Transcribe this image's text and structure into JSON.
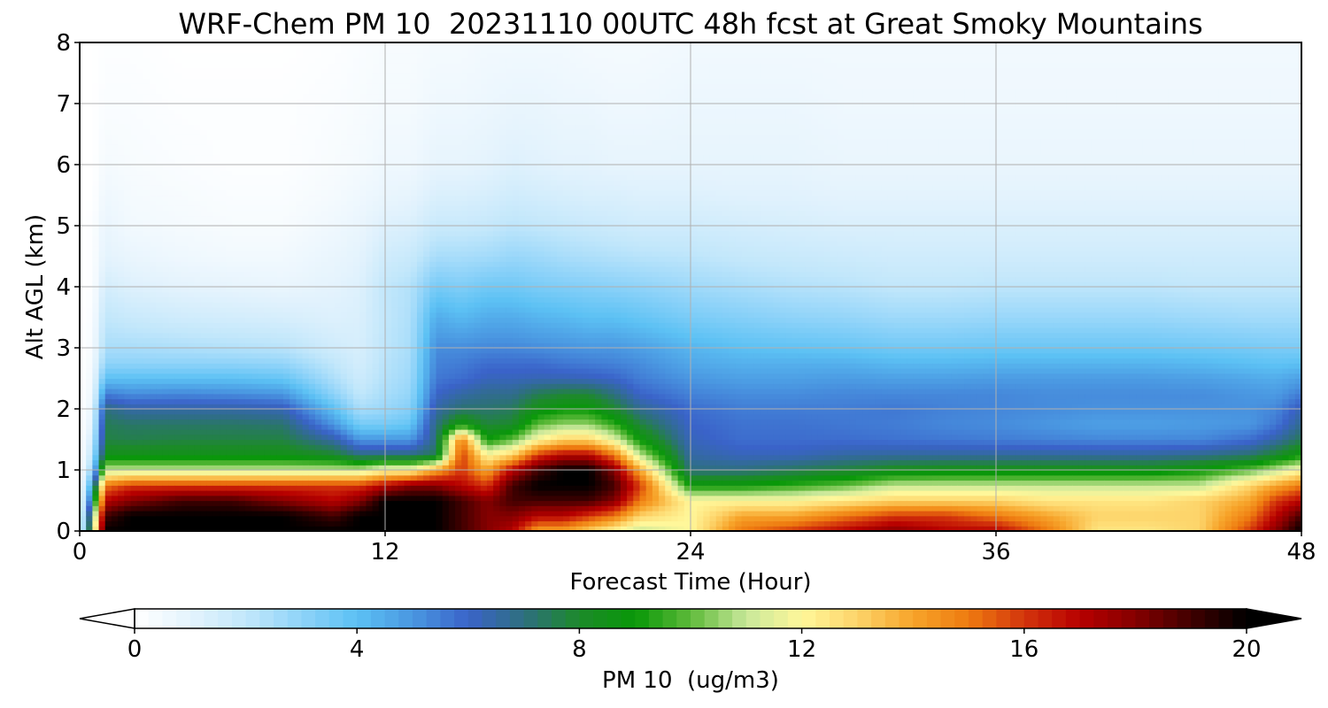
{
  "chart_data": {
    "type": "heatmap",
    "title": "WRF-Chem PM 10  20231110 00UTC 48h fcst at Great Smoky Mountains",
    "xlabel": "Forecast Time (Hour)",
    "ylabel": "Alt AGL (km)",
    "xlim": [
      0,
      48
    ],
    "ylim": [
      0,
      8
    ],
    "xticks": [
      "0",
      "12",
      "24",
      "36",
      "48"
    ],
    "yticks": [
      "0",
      "1",
      "2",
      "3",
      "4",
      "5",
      "6",
      "7",
      "8"
    ],
    "grid": true,
    "colorbar": {
      "label": "PM 10  (ug/m3)",
      "range": [
        0,
        20
      ],
      "ticks": [
        "0",
        "4",
        "8",
        "12",
        "16",
        "20"
      ],
      "extend": "both",
      "orientation": "horizontal",
      "colors": [
        "#ffffff",
        "#e4f3fd",
        "#c2e7fb",
        "#8fd3f9",
        "#5cc1f4",
        "#4a97e1",
        "#3a63c9",
        "#2e6f7f",
        "#1d8a2a",
        "#089808",
        "#5fba3a",
        "#c8e89a",
        "#fff79a",
        "#fdd46a",
        "#f7a42a",
        "#ee7b10",
        "#d3350c",
        "#b70000",
        "#850000",
        "#400000",
        "#000000"
      ]
    },
    "x_hours": [
      0,
      0.5,
      1,
      2,
      4,
      6,
      8,
      10,
      11,
      12,
      13,
      14,
      15,
      16,
      17,
      18,
      19,
      20,
      21,
      22,
      24,
      26,
      28,
      30,
      32,
      34,
      36,
      38,
      40,
      42,
      44,
      46,
      47,
      48
    ],
    "altitudes_km": [
      0,
      0.25,
      0.5,
      0.75,
      1.0,
      1.25,
      1.5,
      1.75,
      2.0,
      2.25,
      2.5,
      2.75,
      3.0,
      3.5,
      4.0,
      4.5,
      5.0,
      5.5,
      6.0,
      7.0,
      8.0
    ],
    "pm10_profiles": [
      [
        0,
        0,
        0,
        0,
        0,
        0,
        0,
        0,
        0,
        0,
        0,
        0,
        0,
        0,
        0,
        0,
        0,
        0,
        0,
        0,
        0
      ],
      [
        10,
        9,
        7,
        5,
        3,
        2,
        1.5,
        1,
        0.8,
        0.6,
        0.5,
        0.4,
        0.3,
        0.2,
        0.1,
        0.1,
        0.1,
        0,
        0,
        0,
        0
      ],
      [
        20,
        19,
        17,
        15,
        11,
        8.5,
        7.7,
        7.5,
        7,
        5.5,
        4,
        3,
        2.5,
        2,
        1.5,
        1,
        0.8,
        0.6,
        0.4,
        0.2,
        0.1
      ],
      [
        20,
        20,
        18,
        16,
        11,
        8.5,
        7.6,
        7.3,
        6.5,
        5.2,
        4,
        3,
        2.5,
        1.8,
        1.2,
        0.8,
        0.5,
        0.4,
        0.3,
        0.2,
        0.1
      ],
      [
        20,
        20,
        19,
        16,
        11,
        8.5,
        7.7,
        7.3,
        6.5,
        5.3,
        4,
        3,
        2.4,
        1.6,
        1.0,
        0.6,
        0.4,
        0.3,
        0.2,
        0.1,
        0
      ],
      [
        20,
        20,
        19,
        16,
        11,
        8.5,
        7.7,
        7.3,
        6.5,
        5.2,
        4,
        3,
        2.3,
        1.5,
        0.9,
        0.5,
        0.3,
        0.2,
        0.1,
        0.1,
        0
      ],
      [
        20,
        20,
        18,
        16,
        11,
        8.5,
        7.7,
        7.2,
        6.3,
        5,
        3.8,
        2.9,
        2.2,
        1.4,
        0.8,
        0.5,
        0.3,
        0.2,
        0.1,
        0.1,
        0
      ],
      [
        20,
        19,
        17,
        16,
        11,
        8,
        6.5,
        5,
        4,
        3,
        2.4,
        2,
        1.6,
        1.2,
        1.0,
        0.8,
        0.6,
        0.4,
        0.3,
        0.2,
        0.1
      ],
      [
        20,
        20,
        18,
        16,
        11,
        7,
        5,
        3.5,
        2.5,
        2,
        1.7,
        1.5,
        1.4,
        1.3,
        1.2,
        1.0,
        0.8,
        0.6,
        0.4,
        0.3,
        0.2
      ],
      [
        20,
        20,
        20,
        17,
        12,
        7,
        5,
        3.5,
        2.8,
        2.5,
        2.3,
        2.2,
        2.1,
        2.0,
        2.0,
        1.6,
        1.2,
        0.8,
        0.6,
        0.4,
        0.3
      ],
      [
        20,
        20,
        20,
        18,
        12,
        7,
        5,
        3.8,
        3.2,
        2.9,
        2.7,
        2.6,
        2.5,
        2.4,
        2.3,
        1.8,
        1.3,
        0.9,
        0.6,
        0.4,
        0.3
      ],
      [
        20,
        20,
        20,
        18,
        14,
        7.5,
        7,
        7,
        6.5,
        6,
        5.6,
        5.4,
        5.2,
        4.5,
        3.5,
        2.5,
        1.8,
        1.3,
        0.9,
        0.6,
        0.4
      ],
      [
        19,
        19,
        19,
        17,
        16,
        16,
        15,
        9,
        7.2,
        6.5,
        5.8,
        5.5,
        5.2,
        4.2,
        3.3,
        2.5,
        1.8,
        1.3,
        0.9,
        0.6,
        0.4
      ],
      [
        18,
        18,
        18,
        16,
        14,
        12,
        9,
        7.8,
        7.2,
        6.8,
        6.2,
        5.8,
        5.3,
        4.5,
        3.6,
        2.6,
        1.9,
        1.4,
        1.0,
        0.7,
        0.5
      ],
      [
        17,
        18,
        19,
        19,
        17,
        13,
        10,
        8,
        7.4,
        6.8,
        6.2,
        5.8,
        5.3,
        4.5,
        3.6,
        2.8,
        2.1,
        1.6,
        1.2,
        0.8,
        0.5
      ],
      [
        14,
        17,
        19,
        20,
        19,
        16,
        12,
        10,
        8.5,
        7.5,
        6.3,
        5.8,
        5.2,
        4.3,
        3.4,
        2.7,
        2.0,
        1.5,
        1.1,
        0.8,
        0.5
      ],
      [
        14,
        17,
        19,
        20,
        20,
        17,
        13,
        10.5,
        9,
        7.8,
        6.3,
        5.6,
        5.1,
        4.2,
        3.3,
        2.5,
        1.9,
        1.4,
        1.0,
        0.7,
        0.5
      ],
      [
        13,
        16,
        19,
        20,
        20,
        17,
        13,
        10.5,
        9,
        7.8,
        6.2,
        5.5,
        5.0,
        4.0,
        3.2,
        2.4,
        1.8,
        1.3,
        1.0,
        0.7,
        0.4
      ],
      [
        12,
        15,
        18,
        19,
        18,
        15,
        11.5,
        9.5,
        8,
        7,
        6,
        5.4,
        5.0,
        4.0,
        3.1,
        2.3,
        1.7,
        1.3,
        0.9,
        0.6,
        0.4
      ],
      [
        11,
        13,
        15,
        16,
        14,
        11,
        9,
        7.8,
        6.8,
        6,
        5.5,
        5.2,
        4.8,
        3.8,
        3.0,
        2.2,
        1.6,
        1.2,
        0.9,
        0.6,
        0.4
      ],
      [
        12,
        12,
        12,
        9,
        7,
        6.5,
        6.2,
        6,
        5.8,
        5.4,
        5,
        4.6,
        4.3,
        3.4,
        2.7,
        2.1,
        1.6,
        1.2,
        0.9,
        0.7,
        0.5
      ],
      [
        15,
        14,
        12,
        9,
        7,
        6.2,
        5.8,
        5.7,
        5.5,
        5.2,
        4.8,
        4.4,
        4.0,
        3.2,
        2.5,
        1.9,
        1.5,
        1.1,
        0.9,
        0.7,
        0.5
      ],
      [
        16,
        14,
        12,
        9.5,
        7.4,
        6.2,
        5.8,
        5.7,
        5.5,
        5.2,
        4.8,
        4.4,
        3.9,
        3.0,
        2.3,
        1.8,
        1.4,
        1.1,
        0.9,
        0.7,
        0.5
      ],
      [
        17,
        15,
        12.5,
        10,
        7.8,
        6.5,
        5.8,
        5.6,
        5.5,
        5.3,
        4.9,
        4.4,
        3.8,
        2.9,
        2.2,
        1.7,
        1.3,
        1.0,
        0.8,
        0.6,
        0.5
      ],
      [
        18,
        16,
        13,
        11,
        8.3,
        6.6,
        5.7,
        5.5,
        5.6,
        5.3,
        4.8,
        4.2,
        3.6,
        2.7,
        2.0,
        1.6,
        1.3,
        1.0,
        0.8,
        0.6,
        0.5
      ],
      [
        17,
        16,
        13,
        11,
        8.5,
        6.6,
        5.6,
        5.3,
        5.4,
        5.3,
        4.8,
        4.2,
        3.6,
        2.7,
        2.0,
        1.6,
        1.3,
        1.0,
        0.8,
        0.6,
        0.5
      ],
      [
        17,
        15,
        13,
        11,
        8.5,
        6.6,
        5.5,
        5.2,
        5.3,
        5.3,
        4.9,
        4.3,
        3.7,
        2.8,
        2.1,
        1.6,
        1.3,
        1.0,
        0.8,
        0.6,
        0.5
      ],
      [
        15,
        14,
        12.5,
        11,
        8.5,
        6.6,
        5.4,
        5.0,
        5.2,
        5.2,
        4.9,
        4.3,
        3.7,
        2.8,
        2.1,
        1.6,
        1.3,
        1.0,
        0.8,
        0.6,
        0.5
      ],
      [
        12.5,
        13,
        12.5,
        11,
        8.5,
        6.6,
        5.3,
        4.8,
        5.1,
        5.2,
        4.9,
        4.3,
        3.7,
        2.8,
        2.1,
        1.6,
        1.3,
        1.0,
        0.8,
        0.6,
        0.5
      ],
      [
        12.5,
        13,
        12.5,
        11,
        8.5,
        6.6,
        5.3,
        4.8,
        5.1,
        5.2,
        4.9,
        4.3,
        3.7,
        2.8,
        2.1,
        1.6,
        1.3,
        1.0,
        0.8,
        0.6,
        0.5
      ],
      [
        13,
        13,
        13,
        11,
        9,
        6.8,
        5.3,
        4.9,
        5.1,
        5.2,
        4.8,
        4.2,
        3.6,
        2.7,
        2.0,
        1.6,
        1.3,
        1.0,
        0.8,
        0.6,
        0.5
      ],
      [
        16,
        15,
        14,
        13,
        10,
        7.2,
        5.8,
        5.0,
        5.1,
        5.0,
        4.6,
        4.0,
        3.5,
        2.6,
        2.0,
        1.6,
        1.3,
        1.0,
        0.8,
        0.6,
        0.5
      ],
      [
        18,
        17,
        16,
        14,
        11,
        8,
        6.5,
        5.6,
        5.3,
        4.9,
        4.5,
        3.9,
        3.4,
        2.6,
        2.0,
        1.6,
        1.3,
        1.0,
        0.8,
        0.6,
        0.5
      ],
      [
        20,
        19,
        17,
        15,
        12,
        9,
        7.5,
        6.8,
        6.3,
        5.5,
        4.8,
        4.0,
        3.4,
        2.6,
        2.0,
        1.6,
        1.3,
        1.0,
        0.8,
        0.6,
        0.5
      ]
    ]
  }
}
